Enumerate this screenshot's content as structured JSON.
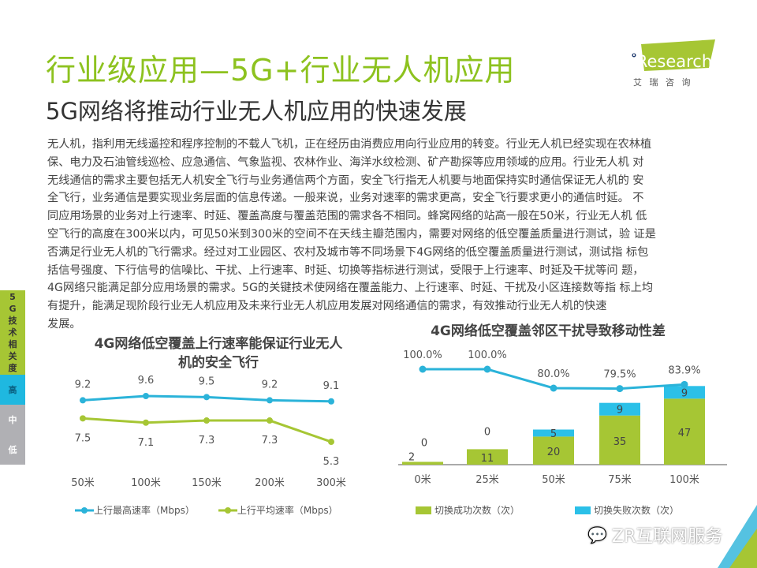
{
  "header": {
    "title": "行业级应用—5G+行业无人机应用",
    "subtitle": "5G网络将推动行业无人机应用的快速发展"
  },
  "logo": {
    "brand": "iResearch",
    "cn": "艾 瑞 咨 询"
  },
  "body_lines": [
    "无人机，指利用无线遥控和程序控制的不载人飞机，正在经历由消费应用向行业应用的转变。行业无人机已经实现在农林植",
    "保、电力及石油管线巡检、应急通信、气象监视、农林作业、海洋水纹检测、矿产勘探等应用领域的应用。行业无人机 对",
    "无线通信的需求主要包括无人机安全飞行与业务通信两个方面，安全飞行指无人机要与地面保持实时通信保证无人机的 安",
    "全飞行，业务通信是要实现业务层面的信息传递。一般来说，业务对速率的需求更高，安全飞行要求更小的通信时延。 不",
    "同应用场景的业务对上行速率、时延、覆盖高度与覆盖范围的需求各不相同。蜂窝网络的站高一般在50米，行业无人机 低",
    "空飞行的高度在300米以内，可见50米到300米的空间不在天线主瓣范围内，需要对网络的低空覆盖质量进行测试，验 证是",
    "否满足行业无人机的飞行需求。经过对工业园区、农村及城市等不同场景下4G网络的低空覆盖质量进行测试，测试指 标包",
    "括信号强度、下行信号的信噪比、干扰、上行速率、时延、切换等指标进行测试，受限于上行速率、时延及干扰等问 题，",
    "4G网络只能满足部分应用场景的需求。5G的关键技术使网络在覆盖能力、上行速率、时延、干扰及小区连接数等指 标上均",
    "有提升，能满足现阶段行业无人机应用及未来行业无人机应用发展对网络通信的需求，有效推动行业无人机的快速",
    "发展。"
  ],
  "sidebar": {
    "label": "5G技术相关度",
    "levels": [
      "高",
      "中",
      "低"
    ],
    "active": "高",
    "colors": {
      "label": "#a6c634",
      "high": "#1fb8e0",
      "other": "#b0b0b4"
    }
  },
  "chart_data": [
    {
      "type": "line",
      "title": "4G网络低空覆盖上行速率能保证行业无人机的安全飞行",
      "categories": [
        "50米",
        "100米",
        "150米",
        "200米",
        "300米"
      ],
      "series": [
        {
          "name": "上行最高速率（Mbps）",
          "values": [
            9.2,
            9.6,
            9.5,
            9.2,
            9.1
          ],
          "color": "#2bb3d9"
        },
        {
          "name": "上行平均速率（Mbps）",
          "values": [
            7.5,
            7.1,
            7.3,
            7.3,
            5.3
          ],
          "color": "#a6c634"
        }
      ],
      "legend": "bottom"
    },
    {
      "type": "bar",
      "stacked": true,
      "title": "4G网络低空覆盖邻区干扰导致移动性差",
      "categories": [
        "0米",
        "25米",
        "50米",
        "75米",
        "100米"
      ],
      "series": [
        {
          "name": "切换成功次数（次）",
          "values": [
            2,
            11,
            20,
            35,
            47
          ],
          "color": "#a6c634"
        },
        {
          "name": "切换失败次数（次）",
          "values": [
            0,
            0,
            5,
            9,
            9
          ],
          "color": "#2bc0e8"
        }
      ],
      "line": {
        "values": [
          100.0,
          100.0,
          80.0,
          79.5,
          83.9
        ],
        "labels": [
          "100.0%",
          "100.0%",
          "80.0%",
          "79.5%",
          "83.9%"
        ],
        "color": "#2bb3d9"
      },
      "legend": "bottom"
    }
  ],
  "watermark": "ZR互联网服务"
}
